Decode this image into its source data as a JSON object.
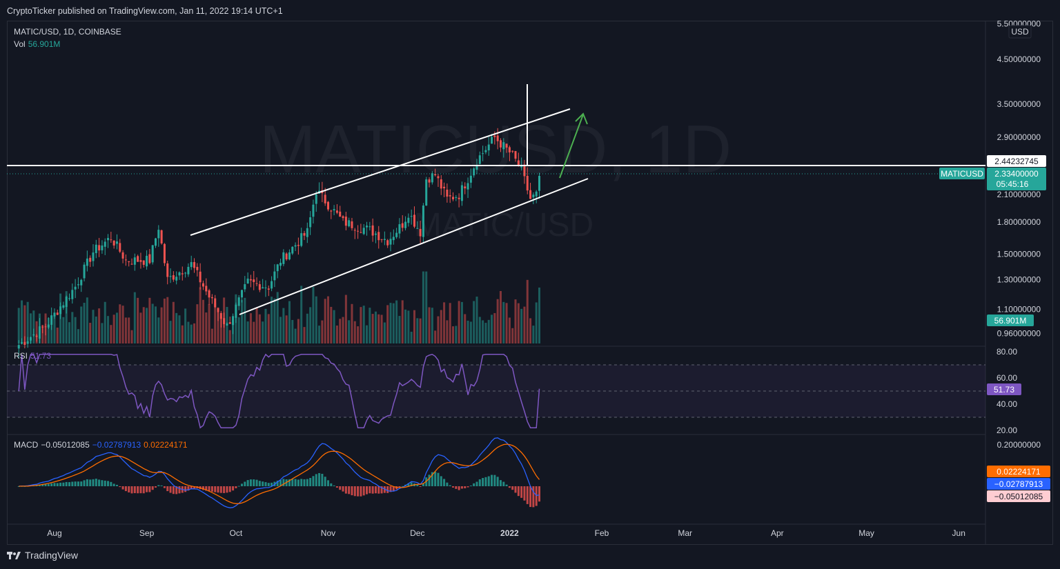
{
  "header": {
    "publisher_line": "CryptoTicker published on TradingView.com, Jan 11, 2022 19:14 UTC+1"
  },
  "symbol": {
    "title": "MATIC/USD, 1D, COINBASE",
    "vol_label": "Vol",
    "vol_value": "56.901M",
    "watermark_main": "MATICUSD, 1D",
    "watermark_sub": "MATIC/USD",
    "currency": "USD"
  },
  "price_axis": {
    "ticks": [
      "5.50000000",
      "4.50000000",
      "3.50000000",
      "2.90000000",
      "2.10000000",
      "1.80000000",
      "1.50000000",
      "1.30000000",
      "1.10000000",
      "0.96000000"
    ]
  },
  "price_labels": {
    "horizontal_line": "2.44232745",
    "symbol_tag": "MATICUSD",
    "last_price": "2.33400000",
    "countdown": "05:45:16",
    "volume": "56.901M"
  },
  "rsi": {
    "label": "RSI",
    "value": "51.73",
    "ticks": [
      "80.00",
      "60.00",
      "40.00",
      "20.00"
    ]
  },
  "macd": {
    "label": "MACD",
    "hist": "−0.05012085",
    "macd_line": "−0.02787913",
    "signal": "0.02224171",
    "ticks": [
      "0.20000000"
    ]
  },
  "time_axis": [
    "Aug",
    "Sep",
    "Oct",
    "Nov",
    "Dec",
    "2022",
    "Feb",
    "Mar",
    "Apr",
    "May",
    "Jun"
  ],
  "footer": {
    "brand": "TradingView"
  },
  "colors": {
    "up": "#26a69a",
    "down": "#ef5350",
    "rsi": "#7e57c2",
    "macd": "#2962ff",
    "signal": "#ff6d00",
    "background": "#131722",
    "annotation": "#ffffff",
    "arrow": "#4caf50"
  },
  "chart_data": [
    {
      "type": "candlestick",
      "title": "MATIC/USD, 1D, COINBASE",
      "y_scale": "log",
      "ylim": [
        0.9,
        5.6
      ],
      "x_range": [
        "2021-07-16",
        "2022-06-10"
      ],
      "description_points": [
        {
          "date": "2021-07-20",
          "close": 0.9
        },
        {
          "date": "2021-07-29",
          "close": 1.0
        },
        {
          "date": "2021-08-08",
          "close": 1.25
        },
        {
          "date": "2021-08-14",
          "close": 1.52
        },
        {
          "date": "2021-08-20",
          "close": 1.65
        },
        {
          "date": "2021-08-25",
          "close": 1.45
        },
        {
          "date": "2021-09-02",
          "close": 1.45
        },
        {
          "date": "2021-09-05",
          "close": 1.75
        },
        {
          "date": "2021-09-08",
          "close": 1.3
        },
        {
          "date": "2021-09-16",
          "close": 1.42
        },
        {
          "date": "2021-09-22",
          "close": 1.18
        },
        {
          "date": "2021-09-28",
          "close": 1.0
        },
        {
          "date": "2021-10-05",
          "close": 1.28
        },
        {
          "date": "2021-10-12",
          "close": 1.25
        },
        {
          "date": "2021-10-16",
          "close": 1.45
        },
        {
          "date": "2021-10-25",
          "close": 1.7
        },
        {
          "date": "2021-10-28",
          "close": 2.15
        },
        {
          "date": "2021-11-02",
          "close": 1.95
        },
        {
          "date": "2021-11-06",
          "close": 1.8
        },
        {
          "date": "2021-11-15",
          "close": 1.72
        },
        {
          "date": "2021-11-21",
          "close": 1.62
        },
        {
          "date": "2021-11-26",
          "close": 1.78
        },
        {
          "date": "2021-11-28",
          "close": 1.9
        },
        {
          "date": "2021-12-02",
          "close": 1.7
        },
        {
          "date": "2021-12-04",
          "close": 2.3
        },
        {
          "date": "2021-12-07",
          "close": 2.35
        },
        {
          "date": "2021-12-11",
          "close": 2.05
        },
        {
          "date": "2021-12-15",
          "close": 2.1
        },
        {
          "date": "2021-12-18",
          "close": 2.3
        },
        {
          "date": "2021-12-21",
          "close": 2.55
        },
        {
          "date": "2021-12-27",
          "close": 2.9
        },
        {
          "date": "2022-01-02",
          "close": 2.62
        },
        {
          "date": "2022-01-05",
          "close": 2.4
        },
        {
          "date": "2022-01-08",
          "close": 2.05
        },
        {
          "date": "2022-01-10",
          "close": 2.1
        },
        {
          "date": "2022-01-11",
          "close": 2.334
        }
      ],
      "last_close": 2.334,
      "horizontal_level": 2.44232745,
      "ascending_channel": true
    },
    {
      "type": "line",
      "title": "RSI",
      "ylim": [
        10,
        90
      ],
      "bands": [
        30,
        50,
        70
      ],
      "last": 51.73
    },
    {
      "type": "line",
      "title": "MACD",
      "series": [
        {
          "name": "MACD",
          "last": -0.02787913
        },
        {
          "name": "Signal",
          "last": 0.02224171
        },
        {
          "name": "Histogram",
          "last": -0.05012085
        }
      ]
    }
  ]
}
